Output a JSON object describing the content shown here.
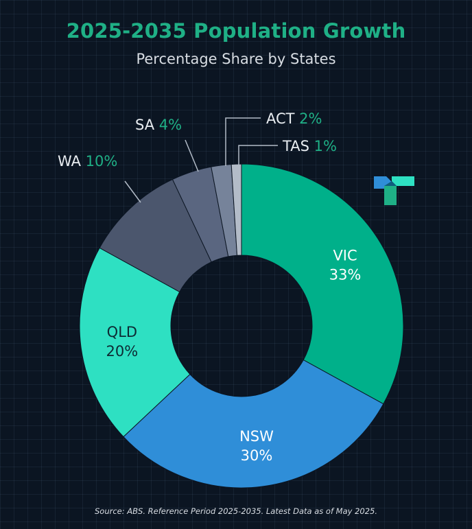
{
  "header": {
    "title": "2025-2035 Population Growth",
    "subtitle": "Percentage Share by States"
  },
  "footer": {
    "source": "Source: ABS. Reference Period 2025-2035. Latest Data as of May 2025."
  },
  "colors": {
    "background": "#0b1522",
    "accent": "#1fb086",
    "text": "#e9edf1",
    "VIC": "#00b08a",
    "NSW": "#2f8ed8",
    "QLD": "#2ee0c2",
    "WA": "#4b566d",
    "SA": "#5a6680",
    "ACT": "#76839a",
    "TAS": "#b3bcc8"
  },
  "logo": {
    "icon": "brand-logo-icon"
  },
  "chart_data": {
    "type": "pie",
    "donut": true,
    "title": "2025-2035 Population Growth",
    "subtitle": "Percentage Share by States",
    "unit": "%",
    "slices": [
      {
        "label": "VIC",
        "value": 33,
        "value_label": "33%"
      },
      {
        "label": "NSW",
        "value": 30,
        "value_label": "30%"
      },
      {
        "label": "QLD",
        "value": 20,
        "value_label": "20%"
      },
      {
        "label": "WA",
        "value": 10,
        "value_label": "10%"
      },
      {
        "label": "SA",
        "value": 4,
        "value_label": "4%"
      },
      {
        "label": "ACT",
        "value": 2,
        "value_label": "2%"
      },
      {
        "label": "TAS",
        "value": 1,
        "value_label": "1%"
      }
    ]
  }
}
